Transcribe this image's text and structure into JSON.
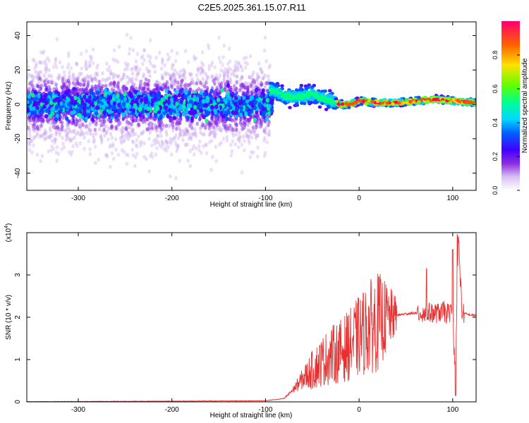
{
  "title": "C2E5.2025.361.15.07.R11",
  "colors": {
    "snr_line": "#e83030",
    "axis": "#000000",
    "cmap": [
      "#ffffff",
      "#c8a6ee",
      "#8a2be2",
      "#4b00ff",
      "#0050ff",
      "#00c8ff",
      "#00ff80",
      "#80ff00",
      "#ffd000",
      "#ff5000",
      "#ff0060"
    ]
  },
  "chart_data": [
    {
      "type": "heatmap",
      "xlabel": "Height of straight line (km)",
      "ylabel": "Frequency (Hz)",
      "xlim": [
        -355,
        125
      ],
      "ylim": [
        -50,
        48
      ],
      "x_ticks": [
        -300,
        -200,
        -100,
        0,
        100
      ],
      "y_ticks": [
        -40,
        -20,
        0,
        20,
        40
      ],
      "colorbar": {
        "label": "Normalized spectral amplitude",
        "range": [
          0,
          1
        ],
        "ticks": [
          "0.0",
          "0.2",
          "0.4",
          "0.6",
          "0.8"
        ],
        "tick_values": [
          0.0,
          0.2,
          0.4,
          0.6,
          0.8
        ]
      },
      "ridge": [
        {
          "x": -90,
          "f": 8
        },
        {
          "x": -80,
          "f": 5
        },
        {
          "x": -70,
          "f": 4
        },
        {
          "x": -60,
          "f": 5
        },
        {
          "x": -50,
          "f": 6
        },
        {
          "x": -40,
          "f": 4
        },
        {
          "x": -30,
          "f": 2
        },
        {
          "x": -20,
          "f": 0
        },
        {
          "x": -10,
          "f": 0
        },
        {
          "x": 0,
          "f": 2
        },
        {
          "x": 20,
          "f": 1
        },
        {
          "x": 40,
          "f": 1
        },
        {
          "x": 60,
          "f": 2
        },
        {
          "x": 80,
          "f": 3
        },
        {
          "x": 100,
          "f": 2
        },
        {
          "x": 125,
          "f": 1
        }
      ]
    },
    {
      "type": "line",
      "xlabel": "Height of straight line (km)",
      "ylabel": "SNR (10 * v/v)",
      "y_multiplier": "(x10",
      "y_multiplier_exp": "4",
      "y_multiplier_close": ")",
      "xlim": [
        -355,
        125
      ],
      "ylim": [
        0,
        4
      ],
      "x_ticks": [
        -300,
        -200,
        -100,
        0,
        100
      ],
      "y_ticks": [
        0,
        1,
        2,
        3
      ],
      "series": [
        {
          "x": [
            -355,
            -100,
            -80,
            -70,
            -60,
            -50,
            -40,
            -30,
            -20,
            -10,
            0,
            10,
            20,
            30,
            40,
            50,
            60,
            70,
            80,
            90,
            100,
            103,
            106,
            110,
            120,
            125
          ],
          "y": [
            0.0,
            0.02,
            0.08,
            0.3,
            0.55,
            0.75,
            0.95,
            1.1,
            1.2,
            1.35,
            1.55,
            1.75,
            1.9,
            1.98,
            2.05,
            2.08,
            2.1,
            2.1,
            2.1,
            2.12,
            2.1,
            0.5,
            4.0,
            2.1,
            2.05,
            2.05
          ],
          "peaks": [
            {
              "x": 72,
              "y": 3.15
            },
            {
              "x": 100,
              "y": 3.6
            },
            {
              "x": 103,
              "y": 0.15
            },
            {
              "x": 105,
              "y": 3.95
            }
          ]
        }
      ]
    }
  ]
}
